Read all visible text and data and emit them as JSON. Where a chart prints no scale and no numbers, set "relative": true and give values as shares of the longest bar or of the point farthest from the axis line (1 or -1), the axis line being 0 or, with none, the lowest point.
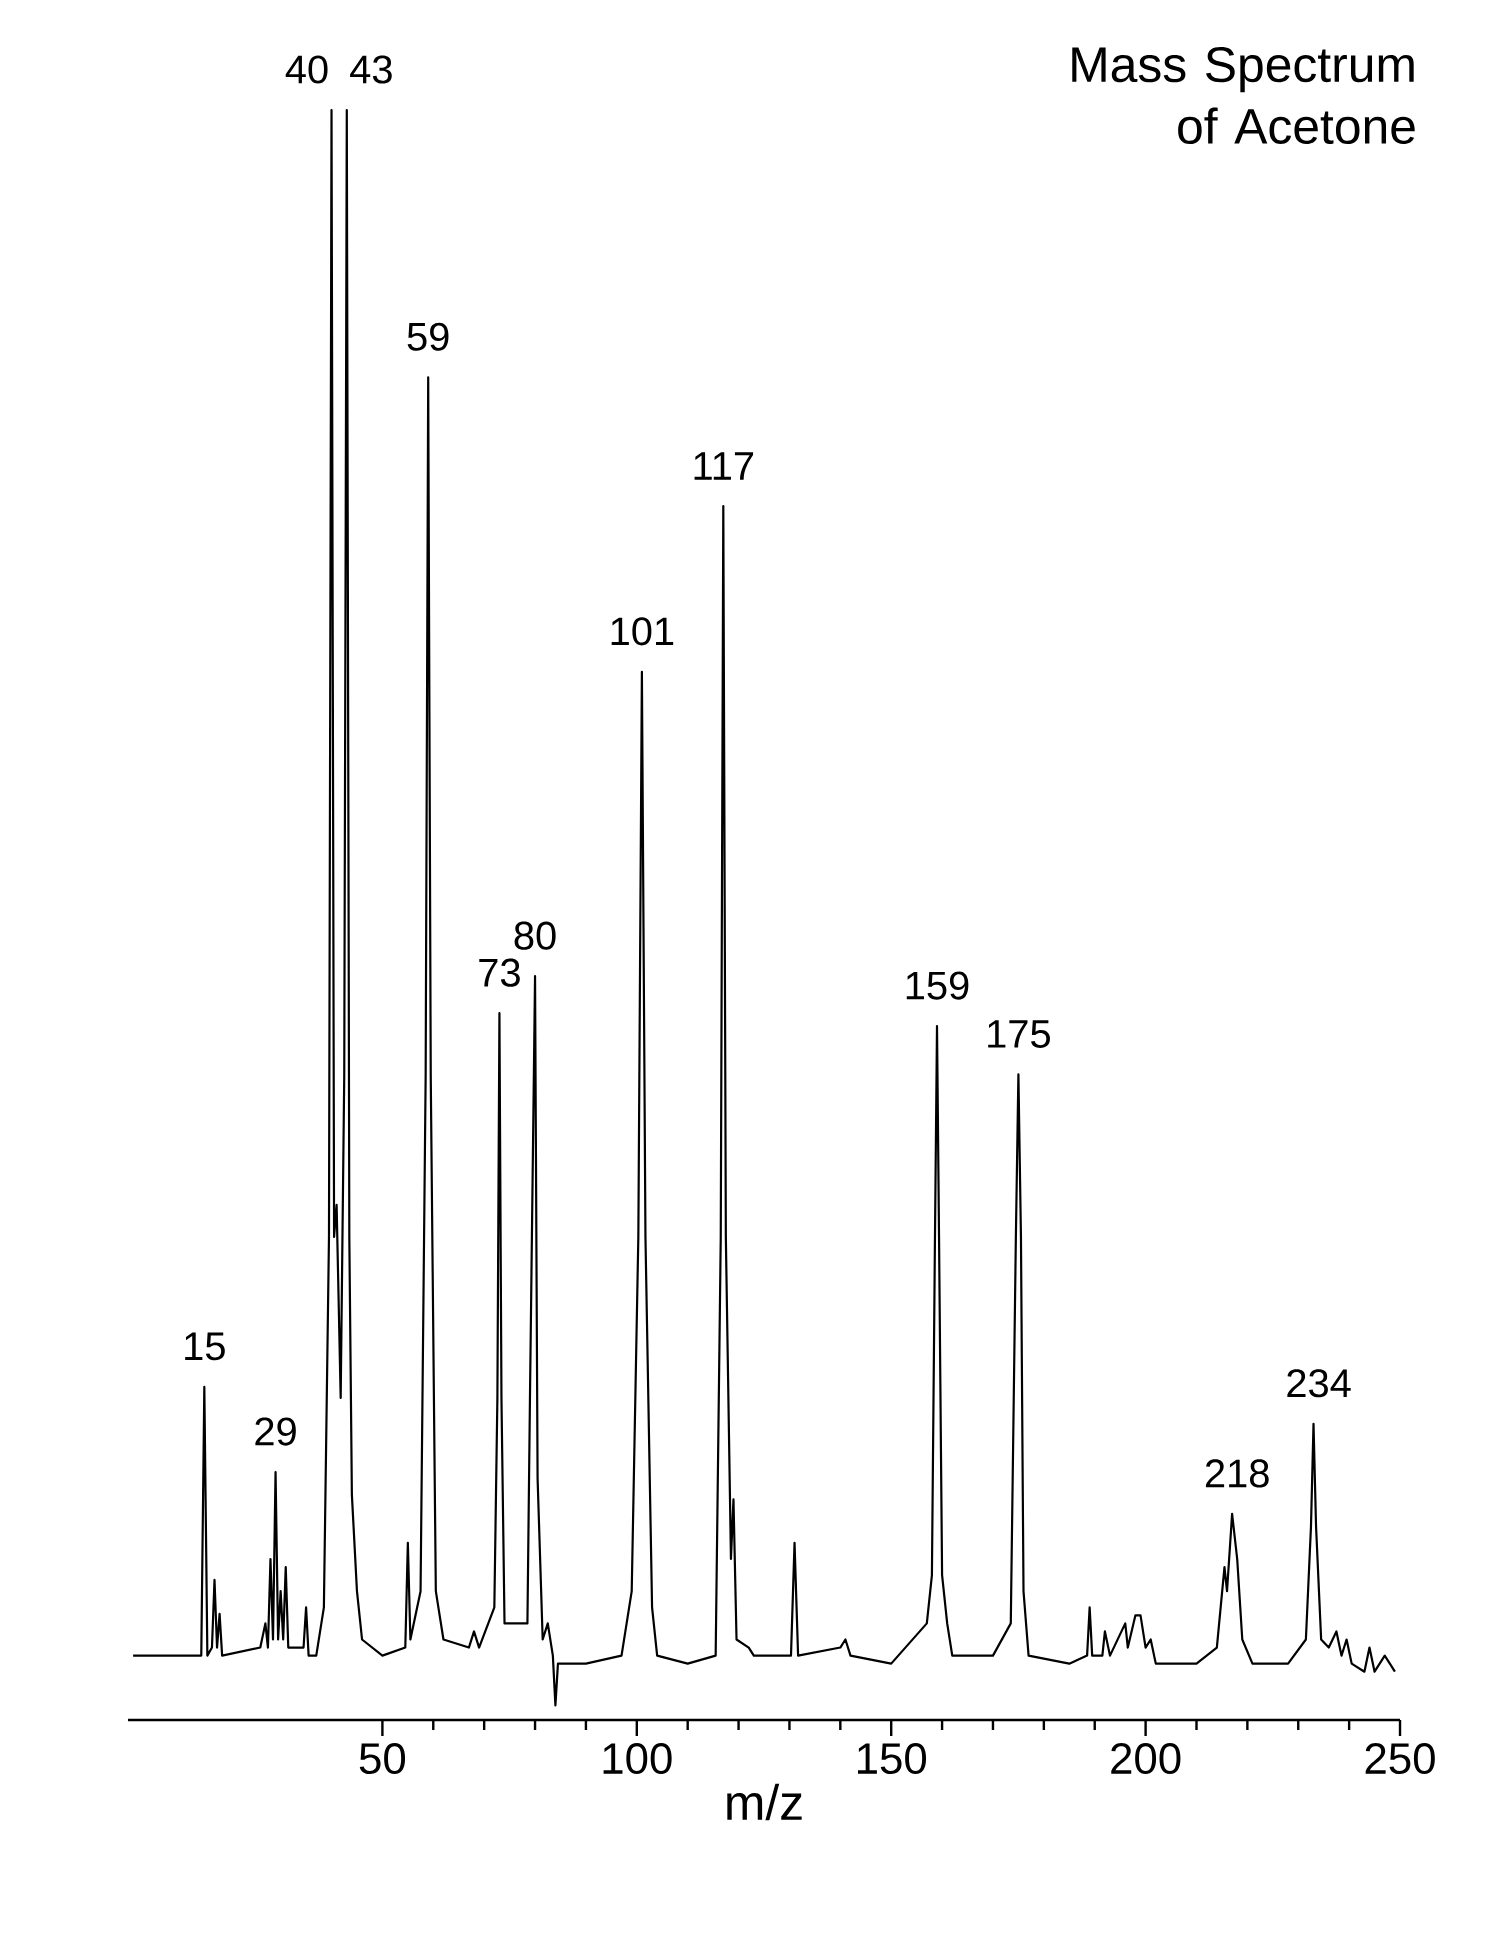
{
  "chart_data": {
    "type": "line",
    "title": "Mass Spectrum of Acetone",
    "xlabel": "m/z",
    "relative": true,
    "xlim": [
      0,
      250
    ],
    "xticks": [
      50,
      100,
      150,
      200,
      250
    ],
    "marker": "none",
    "line_style": "solid",
    "series": [
      {
        "color": "#000000",
        "x": [
          1,
          14.4,
          15,
          15.6,
          16.5,
          17,
          17.5,
          18,
          18.5,
          26,
          27,
          27.5,
          28,
          28.5,
          29,
          29.5,
          30,
          30.5,
          31,
          31.5,
          34.5,
          35,
          35.5,
          37,
          38.5,
          39.5,
          40,
          40.5,
          41,
          41.8,
          42.5,
          43,
          43.5,
          44,
          45,
          46,
          50,
          54.5,
          55,
          55.5,
          57.5,
          58.5,
          59,
          59.5,
          60.5,
          61,
          62,
          67,
          68,
          69,
          72,
          72.6,
          73,
          73.4,
          74,
          78.5,
          79,
          80,
          80.5,
          81.5,
          82.5,
          83.5,
          84,
          84.5,
          90,
          97,
          99,
          100.3,
          101,
          101.7,
          103,
          104,
          110,
          115.5,
          116.5,
          117,
          117.5,
          118.5,
          119,
          119.6,
          122,
          123,
          130.3,
          131,
          131.7,
          140,
          141,
          142,
          150,
          157,
          158,
          158.6,
          159,
          159.4,
          160,
          161,
          162,
          170,
          173.5,
          174.5,
          175,
          175.5,
          176,
          177,
          185,
          188.5,
          189,
          189.5,
          191.5,
          192,
          193,
          196,
          196.5,
          198,
          199,
          200,
          201,
          202,
          210,
          214,
          215.5,
          216,
          217,
          218,
          219,
          221,
          228,
          231.5,
          232.5,
          233,
          233.5,
          234.5,
          236,
          237.5,
          238.5,
          239.5,
          240.5,
          243,
          244,
          245,
          247,
          248,
          249
        ],
        "values": [
          0.04,
          0.04,
          0.207,
          0.04,
          0.045,
          0.087,
          0.045,
          0.066,
          0.04,
          0.045,
          0.06,
          0.045,
          0.1,
          0.05,
          0.154,
          0.05,
          0.08,
          0.05,
          0.095,
          0.045,
          0.045,
          0.07,
          0.04,
          0.04,
          0.07,
          0.3,
          1.0,
          0.3,
          0.32,
          0.2,
          0.4,
          1.0,
          0.3,
          0.14,
          0.08,
          0.05,
          0.04,
          0.045,
          0.11,
          0.05,
          0.08,
          0.4,
          0.834,
          0.4,
          0.08,
          0.07,
          0.05,
          0.045,
          0.055,
          0.045,
          0.07,
          0.2,
          0.439,
          0.2,
          0.06,
          0.06,
          0.2,
          0.462,
          0.15,
          0.05,
          0.06,
          0.04,
          0.009,
          0.035,
          0.035,
          0.04,
          0.08,
          0.3,
          0.651,
          0.3,
          0.07,
          0.04,
          0.035,
          0.04,
          0.3,
          0.754,
          0.3,
          0.1,
          0.137,
          0.05,
          0.045,
          0.04,
          0.04,
          0.11,
          0.04,
          0.045,
          0.05,
          0.04,
          0.035,
          0.06,
          0.09,
          0.3,
          0.431,
          0.3,
          0.09,
          0.06,
          0.04,
          0.04,
          0.06,
          0.3,
          0.401,
          0.3,
          0.08,
          0.04,
          0.035,
          0.04,
          0.07,
          0.04,
          0.04,
          0.055,
          0.04,
          0.06,
          0.045,
          0.065,
          0.065,
          0.045,
          0.05,
          0.035,
          0.035,
          0.045,
          0.095,
          0.08,
          0.128,
          0.1,
          0.05,
          0.035,
          0.035,
          0.05,
          0.12,
          0.184,
          0.12,
          0.05,
          0.045,
          0.055,
          0.04,
          0.05,
          0.035,
          0.03,
          0.045,
          0.03,
          0.04,
          0.035,
          0.03
        ]
      }
    ],
    "annotations": [
      {
        "text": "15",
        "x": 15,
        "y": 0.207
      },
      {
        "text": "29",
        "x": 29,
        "y": 0.154
      },
      {
        "text": "40",
        "x": 40,
        "y": 1.0
      },
      {
        "text": "43",
        "x": 43,
        "y": 1.0
      },
      {
        "text": "59",
        "x": 59,
        "y": 0.834
      },
      {
        "text": "73",
        "x": 73,
        "y": 0.439
      },
      {
        "text": "80",
        "x": 80,
        "y": 0.462
      },
      {
        "text": "101",
        "x": 101,
        "y": 0.651
      },
      {
        "text": "117",
        "x": 117,
        "y": 0.754
      },
      {
        "text": "159",
        "x": 159,
        "y": 0.431
      },
      {
        "text": "175",
        "x": 175,
        "y": 0.401
      },
      {
        "text": "218",
        "x": 218,
        "y": 0.128
      },
      {
        "text": "234",
        "x": 234,
        "y": 0.184
      }
    ]
  }
}
